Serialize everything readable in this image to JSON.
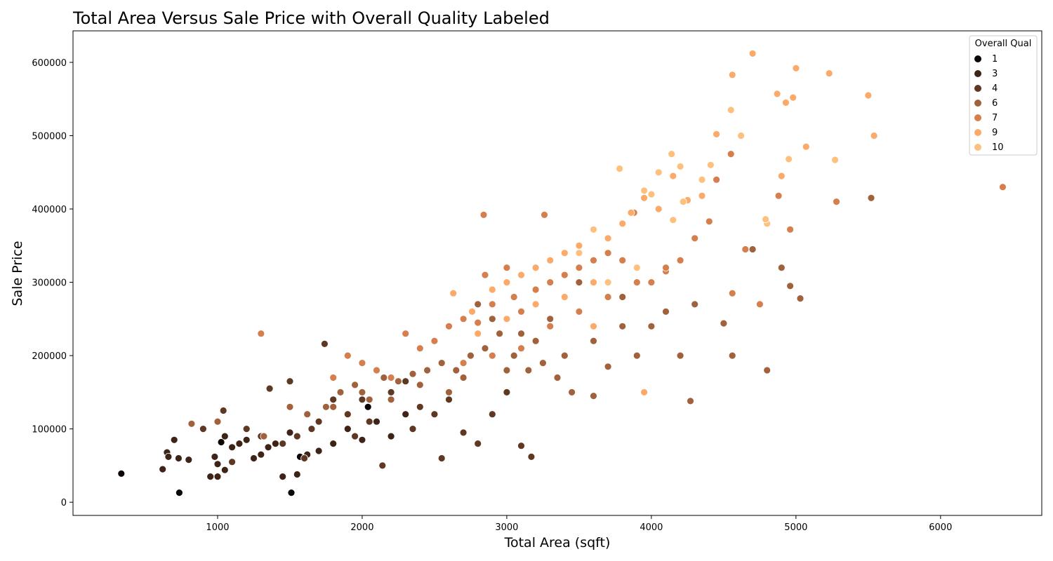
{
  "chart_data": {
    "type": "scatter",
    "title": "Total Area Versus Sale Price with Overall Quality Labeled",
    "xlabel": "Total Area (sqft)",
    "ylabel": "Sale Price",
    "xlim": [
      0,
      6700
    ],
    "ylim": [
      -18000,
      643000
    ],
    "xticks": [
      1000,
      2000,
      3000,
      4000,
      5000,
      6000
    ],
    "yticks": [
      0,
      100000,
      200000,
      300000,
      400000,
      500000,
      600000
    ],
    "grid": false,
    "legend": {
      "title": "Overall Qual",
      "placement": "top-right",
      "entries": [
        {
          "label": "1",
          "color": "#0b0604"
        },
        {
          "label": "3",
          "color": "#3d2416"
        },
        {
          "label": "4",
          "color": "#5e3822"
        },
        {
          "label": "6",
          "color": "#a0623c"
        },
        {
          "label": "7",
          "color": "#d57f4f"
        },
        {
          "label": "9",
          "color": "#fbaa6a"
        },
        {
          "label": "10",
          "color": "#fdc07e"
        }
      ]
    },
    "series": [
      {
        "name": "1",
        "color": "#0b0604",
        "points": [
          [
            334,
            39000
          ],
          [
            735,
            13000
          ],
          [
            1510,
            13000
          ],
          [
            1570,
            62000
          ],
          [
            1025,
            82000
          ],
          [
            2040,
            130000
          ]
        ]
      },
      {
        "name": "3",
        "color": "#3d2416",
        "points": [
          [
            620,
            45000
          ],
          [
            650,
            68000
          ],
          [
            660,
            62000
          ],
          [
            730,
            60000
          ],
          [
            800,
            58000
          ],
          [
            950,
            35000
          ],
          [
            1000,
            35000
          ],
          [
            1000,
            52000
          ],
          [
            1050,
            44000
          ],
          [
            1100,
            75000
          ],
          [
            1200,
            85000
          ],
          [
            1300,
            65000
          ],
          [
            1400,
            80000
          ],
          [
            1500,
            95000
          ],
          [
            1450,
            35000
          ],
          [
            1550,
            38000
          ],
          [
            1620,
            65000
          ],
          [
            1700,
            70000
          ],
          [
            1800,
            80000
          ],
          [
            1900,
            100000
          ],
          [
            2000,
            85000
          ],
          [
            2100,
            110000
          ],
          [
            2200,
            90000
          ],
          [
            2300,
            120000
          ],
          [
            1050,
            90000
          ],
          [
            1150,
            80000
          ],
          [
            1250,
            60000
          ],
          [
            1350,
            75000
          ],
          [
            700,
            85000
          ],
          [
            980,
            62000
          ]
        ]
      },
      {
        "name": "4",
        "color": "#5e3822",
        "points": [
          [
            900,
            100000
          ],
          [
            1040,
            125000
          ],
          [
            1100,
            55000
          ],
          [
            1200,
            100000
          ],
          [
            1300,
            90000
          ],
          [
            1360,
            155000
          ],
          [
            1500,
            165000
          ],
          [
            1600,
            60000
          ],
          [
            1740,
            216000
          ],
          [
            1800,
            140000
          ],
          [
            1900,
            120000
          ],
          [
            2000,
            140000
          ],
          [
            2140,
            50000
          ],
          [
            2300,
            165000
          ],
          [
            2400,
            130000
          ],
          [
            2550,
            60000
          ],
          [
            2700,
            95000
          ],
          [
            2800,
            80000
          ],
          [
            3000,
            150000
          ],
          [
            3100,
            77000
          ],
          [
            3170,
            62000
          ],
          [
            2500,
            120000
          ],
          [
            2600,
            140000
          ],
          [
            2900,
            120000
          ],
          [
            1700,
            110000
          ],
          [
            1650,
            100000
          ],
          [
            2200,
            150000
          ],
          [
            1950,
            90000
          ],
          [
            1450,
            80000
          ],
          [
            1550,
            90000
          ],
          [
            2050,
            110000
          ],
          [
            2350,
            100000
          ]
        ]
      },
      {
        "name": "6",
        "color": "#a0623c",
        "points": [
          [
            820,
            107000
          ],
          [
            1000,
            110000
          ],
          [
            1320,
            90000
          ],
          [
            1500,
            130000
          ],
          [
            1620,
            120000
          ],
          [
            1750,
            130000
          ],
          [
            1850,
            150000
          ],
          [
            1950,
            160000
          ],
          [
            2050,
            140000
          ],
          [
            2150,
            170000
          ],
          [
            2250,
            165000
          ],
          [
            2350,
            175000
          ],
          [
            2450,
            180000
          ],
          [
            2550,
            190000
          ],
          [
            2650,
            180000
          ],
          [
            2750,
            200000
          ],
          [
            2850,
            210000
          ],
          [
            2950,
            230000
          ],
          [
            3050,
            200000
          ],
          [
            3150,
            180000
          ],
          [
            3250,
            190000
          ],
          [
            3350,
            170000
          ],
          [
            3450,
            150000
          ],
          [
            3600,
            145000
          ],
          [
            3700,
            185000
          ],
          [
            3800,
            280000
          ],
          [
            3900,
            200000
          ],
          [
            4000,
            240000
          ],
          [
            4100,
            260000
          ],
          [
            4200,
            200000
          ],
          [
            4270,
            138000
          ],
          [
            4500,
            244000
          ],
          [
            4800,
            180000
          ],
          [
            4900,
            320000
          ],
          [
            5030,
            278000
          ],
          [
            5520,
            415000
          ],
          [
            3500,
            300000
          ],
          [
            3300,
            250000
          ],
          [
            3200,
            220000
          ],
          [
            2800,
            270000
          ],
          [
            2900,
            250000
          ],
          [
            3100,
            230000
          ],
          [
            1800,
            130000
          ],
          [
            2000,
            150000
          ],
          [
            2200,
            140000
          ],
          [
            2400,
            160000
          ],
          [
            2600,
            150000
          ],
          [
            2700,
            170000
          ],
          [
            3000,
            180000
          ],
          [
            3400,
            200000
          ],
          [
            3600,
            220000
          ],
          [
            3800,
            240000
          ],
          [
            4300,
            270000
          ],
          [
            4560,
            200000
          ],
          [
            4700,
            345000
          ],
          [
            4960,
            295000
          ]
        ]
      },
      {
        "name": "7",
        "color": "#d57f4f",
        "points": [
          [
            1300,
            230000
          ],
          [
            1800,
            170000
          ],
          [
            1900,
            200000
          ],
          [
            2000,
            190000
          ],
          [
            2100,
            180000
          ],
          [
            2200,
            170000
          ],
          [
            2300,
            230000
          ],
          [
            2400,
            210000
          ],
          [
            2500,
            220000
          ],
          [
            2600,
            240000
          ],
          [
            2700,
            250000
          ],
          [
            2800,
            245000
          ],
          [
            2840,
            392000
          ],
          [
            2850,
            310000
          ],
          [
            2900,
            270000
          ],
          [
            3000,
            320000
          ],
          [
            3050,
            280000
          ],
          [
            3100,
            260000
          ],
          [
            3200,
            290000
          ],
          [
            3260,
            392000
          ],
          [
            3300,
            300000
          ],
          [
            3400,
            310000
          ],
          [
            3500,
            320000
          ],
          [
            3600,
            330000
          ],
          [
            3700,
            340000
          ],
          [
            3800,
            330000
          ],
          [
            3880,
            395000
          ],
          [
            4000,
            300000
          ],
          [
            4100,
            315000
          ],
          [
            4200,
            330000
          ],
          [
            4300,
            360000
          ],
          [
            4450,
            440000
          ],
          [
            4550,
            475000
          ],
          [
            4560,
            285000
          ],
          [
            4750,
            270000
          ],
          [
            4880,
            418000
          ],
          [
            4960,
            372000
          ],
          [
            5280,
            410000
          ],
          [
            6430,
            430000
          ],
          [
            2700,
            190000
          ],
          [
            2900,
            200000
          ],
          [
            3100,
            210000
          ],
          [
            3300,
            240000
          ],
          [
            3500,
            260000
          ],
          [
            3700,
            280000
          ],
          [
            3900,
            300000
          ],
          [
            4100,
            320000
          ],
          [
            4400,
            383000
          ],
          [
            4650,
            345000
          ]
        ]
      },
      {
        "name": "9",
        "color": "#fbaa6a",
        "points": [
          [
            2630,
            285000
          ],
          [
            2760,
            260000
          ],
          [
            2900,
            290000
          ],
          [
            3000,
            300000
          ],
          [
            3100,
            310000
          ],
          [
            3200,
            320000
          ],
          [
            3300,
            330000
          ],
          [
            3400,
            340000
          ],
          [
            3500,
            350000
          ],
          [
            3600,
            300000
          ],
          [
            3700,
            360000
          ],
          [
            3800,
            380000
          ],
          [
            3860,
            395000
          ],
          [
            3950,
            415000
          ],
          [
            4050,
            400000
          ],
          [
            4150,
            445000
          ],
          [
            4250,
            412000
          ],
          [
            4350,
            418000
          ],
          [
            4450,
            502000
          ],
          [
            4560,
            583000
          ],
          [
            4700,
            612000
          ],
          [
            4870,
            557000
          ],
          [
            4930,
            545000
          ],
          [
            5000,
            592000
          ],
          [
            5230,
            585000
          ],
          [
            5500,
            555000
          ],
          [
            5540,
            500000
          ],
          [
            5070,
            485000
          ],
          [
            4980,
            552000
          ],
          [
            4900,
            445000
          ],
          [
            3950,
            150000
          ],
          [
            3600,
            240000
          ],
          [
            2800,
            230000
          ],
          [
            3000,
            250000
          ],
          [
            3200,
            270000
          ],
          [
            3400,
            280000
          ]
        ]
      },
      {
        "name": "10",
        "color": "#fdc07e",
        "points": [
          [
            3780,
            455000
          ],
          [
            4050,
            450000
          ],
          [
            4140,
            475000
          ],
          [
            4200,
            458000
          ],
          [
            4350,
            440000
          ],
          [
            4410,
            460000
          ],
          [
            4550,
            535000
          ],
          [
            4620,
            500000
          ],
          [
            4800,
            380000
          ],
          [
            5270,
            467000
          ],
          [
            3950,
            425000
          ],
          [
            4150,
            385000
          ],
          [
            3700,
            300000
          ],
          [
            3500,
            340000
          ],
          [
            3900,
            320000
          ],
          [
            4000,
            420000
          ],
          [
            4220,
            410000
          ],
          [
            4790,
            386000
          ],
          [
            4950,
            468000
          ],
          [
            3600,
            372000
          ]
        ]
      }
    ]
  }
}
